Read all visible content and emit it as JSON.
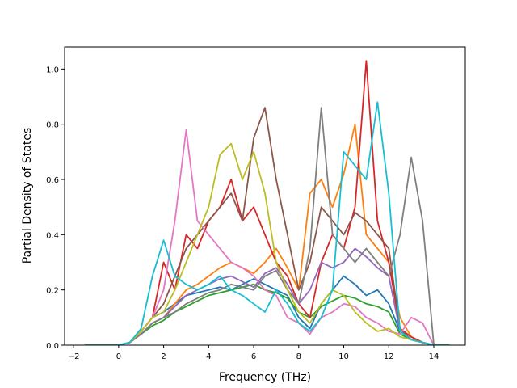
{
  "chart_data": {
    "type": "line",
    "title": "",
    "xlabel": "Frequency (THz)",
    "ylabel": "Partial Density of States",
    "xlim": [
      -2.4,
      15.4
    ],
    "ylim": [
      0.0,
      1.08
    ],
    "xticks": [
      -2,
      0,
      2,
      4,
      6,
      8,
      10,
      12,
      14
    ],
    "xtick_labels": [
      "−2",
      "0",
      "2",
      "4",
      "6",
      "8",
      "10",
      "12",
      "14"
    ],
    "yticks": [
      0.0,
      0.2,
      0.4,
      0.6,
      0.8,
      1.0
    ],
    "ytick_labels": [
      "0.0",
      "0.2",
      "0.4",
      "0.6",
      "0.8",
      "1.0"
    ],
    "grid": false,
    "legend": "none",
    "series": [
      {
        "color": "#1f77b4",
        "x": [
          -1.5,
          0,
          0.5,
          1,
          1.5,
          2,
          2.5,
          3,
          3.5,
          4,
          4.5,
          5,
          5.5,
          6,
          6.5,
          7,
          7.5,
          8,
          8.5,
          9,
          9.5,
          10,
          10.5,
          11,
          11.5,
          12,
          12.5,
          13,
          13.5,
          14,
          14.7
        ],
        "y": [
          0,
          0,
          0.01,
          0.05,
          0.1,
          0.12,
          0.15,
          0.18,
          0.19,
          0.2,
          0.21,
          0.2,
          0.22,
          0.24,
          0.22,
          0.2,
          0.18,
          0.1,
          0.06,
          0.15,
          0.2,
          0.25,
          0.22,
          0.18,
          0.2,
          0.15,
          0.05,
          0.02,
          0.01,
          0,
          0
        ]
      },
      {
        "color": "#ff7f0e",
        "x": [
          -1.5,
          0,
          0.5,
          1,
          1.5,
          2,
          2.5,
          3,
          3.5,
          4,
          4.5,
          5,
          5.5,
          6,
          6.5,
          7,
          7.5,
          8,
          8.5,
          9,
          9.5,
          10,
          10.5,
          11,
          11.5,
          12,
          12.5,
          13,
          13.5,
          14,
          14.7
        ],
        "y": [
          0,
          0,
          0.01,
          0.04,
          0.08,
          0.1,
          0.15,
          0.2,
          0.22,
          0.25,
          0.28,
          0.3,
          0.28,
          0.26,
          0.3,
          0.35,
          0.28,
          0.2,
          0.55,
          0.6,
          0.5,
          0.62,
          0.8,
          0.4,
          0.35,
          0.3,
          0.1,
          0.03,
          0.01,
          0,
          0
        ]
      },
      {
        "color": "#2ca02c",
        "x": [
          -1.5,
          0,
          0.5,
          1,
          1.5,
          2,
          2.5,
          3,
          3.5,
          4,
          4.5,
          5,
          5.5,
          6,
          6.5,
          7,
          7.5,
          8,
          8.5,
          9,
          9.5,
          10,
          10.5,
          11,
          11.5,
          12,
          12.5,
          13,
          13.5,
          14,
          14.7
        ],
        "y": [
          0,
          0,
          0.01,
          0.04,
          0.07,
          0.09,
          0.12,
          0.14,
          0.16,
          0.18,
          0.19,
          0.2,
          0.21,
          0.22,
          0.2,
          0.19,
          0.17,
          0.12,
          0.1,
          0.14,
          0.16,
          0.18,
          0.17,
          0.15,
          0.14,
          0.12,
          0.04,
          0.02,
          0.01,
          0,
          0
        ]
      },
      {
        "color": "#d62728",
        "x": [
          -1.5,
          0,
          0.5,
          1,
          1.5,
          2,
          2.5,
          3,
          3.5,
          4,
          4.5,
          5,
          5.5,
          6,
          6.5,
          7,
          7.5,
          8,
          8.5,
          9,
          9.5,
          10,
          10.5,
          11,
          11.5,
          12,
          12.5,
          13,
          13.5,
          14,
          14.7
        ],
        "y": [
          0,
          0,
          0.01,
          0.05,
          0.1,
          0.3,
          0.2,
          0.4,
          0.35,
          0.45,
          0.5,
          0.6,
          0.45,
          0.5,
          0.4,
          0.3,
          0.25,
          0.15,
          0.1,
          0.3,
          0.4,
          0.35,
          0.5,
          1.03,
          0.45,
          0.3,
          0.06,
          0.03,
          0.01,
          0,
          0
        ]
      },
      {
        "color": "#9467bd",
        "x": [
          -1.5,
          0,
          0.5,
          1,
          1.5,
          2,
          2.5,
          3,
          3.5,
          4,
          4.5,
          5,
          5.5,
          6,
          6.5,
          7,
          7.5,
          8,
          8.5,
          9,
          9.5,
          10,
          10.5,
          11,
          11.5,
          12,
          12.5,
          13,
          13.5,
          14,
          14.7
        ],
        "y": [
          0,
          0,
          0.01,
          0.04,
          0.08,
          0.1,
          0.14,
          0.18,
          0.2,
          0.22,
          0.24,
          0.25,
          0.23,
          0.21,
          0.26,
          0.28,
          0.22,
          0.15,
          0.2,
          0.3,
          0.28,
          0.3,
          0.35,
          0.32,
          0.28,
          0.25,
          0.05,
          0.02,
          0.01,
          0,
          0
        ]
      },
      {
        "color": "#8c564b",
        "x": [
          -1.5,
          0,
          0.5,
          1,
          1.5,
          2,
          2.5,
          3,
          3.5,
          4,
          4.5,
          5,
          5.5,
          6,
          6.5,
          7,
          7.5,
          8,
          8.5,
          9,
          9.5,
          10,
          10.5,
          11,
          11.5,
          12,
          12.5,
          13,
          13.5,
          14,
          14.7
        ],
        "y": [
          0,
          0,
          0.01,
          0.05,
          0.1,
          0.15,
          0.25,
          0.35,
          0.4,
          0.45,
          0.5,
          0.55,
          0.45,
          0.75,
          0.86,
          0.6,
          0.4,
          0.2,
          0.3,
          0.5,
          0.45,
          0.4,
          0.48,
          0.45,
          0.4,
          0.35,
          0.06,
          0.02,
          0.01,
          0,
          0
        ]
      },
      {
        "color": "#e377c2",
        "x": [
          -1.5,
          0,
          0.5,
          1,
          1.5,
          2,
          2.5,
          3,
          3.5,
          4,
          4.5,
          5,
          5.5,
          6,
          6.5,
          7,
          7.5,
          8,
          8.5,
          9,
          9.5,
          10,
          10.5,
          11,
          11.5,
          12,
          12.5,
          13,
          13.5,
          14,
          14.7
        ],
        "y": [
          0,
          0,
          0.01,
          0.05,
          0.1,
          0.2,
          0.45,
          0.78,
          0.45,
          0.4,
          0.35,
          0.3,
          0.28,
          0.25,
          0.2,
          0.18,
          0.1,
          0.08,
          0.04,
          0.1,
          0.12,
          0.15,
          0.14,
          0.1,
          0.08,
          0.05,
          0.04,
          0.1,
          0.08,
          0,
          0
        ]
      },
      {
        "color": "#7f7f7f",
        "x": [
          -1.5,
          0,
          0.5,
          1,
          1.5,
          2,
          2.5,
          3,
          3.5,
          4,
          4.5,
          5,
          5.5,
          6,
          6.5,
          7,
          7.5,
          8,
          8.5,
          9,
          9.5,
          10,
          10.5,
          11,
          11.5,
          12,
          12.5,
          13,
          13.5,
          14,
          14.7
        ],
        "y": [
          0,
          0,
          0.01,
          0.04,
          0.08,
          0.1,
          0.12,
          0.15,
          0.17,
          0.19,
          0.2,
          0.22,
          0.21,
          0.2,
          0.25,
          0.27,
          0.2,
          0.15,
          0.35,
          0.86,
          0.4,
          0.35,
          0.3,
          0.35,
          0.3,
          0.25,
          0.4,
          0.68,
          0.45,
          0,
          0
        ]
      },
      {
        "color": "#bcbd22",
        "x": [
          -1.5,
          0,
          0.5,
          1,
          1.5,
          2,
          2.5,
          3,
          3.5,
          4,
          4.5,
          5,
          5.5,
          6,
          6.5,
          7,
          7.5,
          8,
          8.5,
          9,
          9.5,
          10,
          10.5,
          11,
          11.5,
          12,
          12.5,
          13,
          13.5,
          14,
          14.7
        ],
        "y": [
          0,
          0,
          0.01,
          0.05,
          0.1,
          0.12,
          0.2,
          0.3,
          0.4,
          0.5,
          0.69,
          0.73,
          0.6,
          0.7,
          0.55,
          0.3,
          0.2,
          0.12,
          0.08,
          0.15,
          0.2,
          0.18,
          0.12,
          0.08,
          0.05,
          0.06,
          0.03,
          0.02,
          0.01,
          0,
          0
        ]
      },
      {
        "color": "#17becf",
        "x": [
          -1.5,
          0,
          0.5,
          1,
          1.5,
          2,
          2.5,
          3,
          3.5,
          4,
          4.5,
          5,
          5.5,
          6,
          6.5,
          7,
          7.5,
          8,
          8.5,
          9,
          9.5,
          10,
          10.5,
          11,
          11.5,
          12,
          12.5,
          13,
          13.5,
          14,
          14.7
        ],
        "y": [
          0,
          0,
          0.01,
          0.06,
          0.25,
          0.38,
          0.25,
          0.22,
          0.2,
          0.22,
          0.25,
          0.2,
          0.18,
          0.15,
          0.12,
          0.2,
          0.15,
          0.08,
          0.05,
          0.1,
          0.2,
          0.7,
          0.65,
          0.6,
          0.88,
          0.55,
          0.05,
          0.02,
          0.01,
          0,
          0
        ]
      }
    ]
  }
}
